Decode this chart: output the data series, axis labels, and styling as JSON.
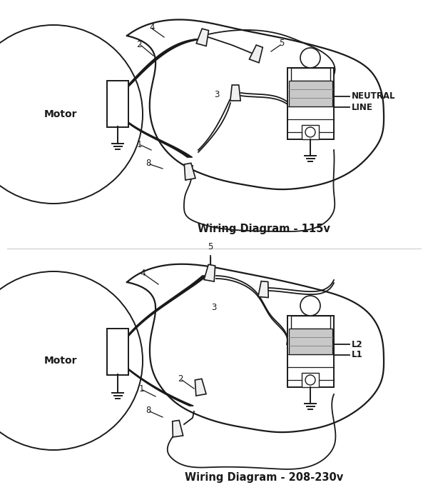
{
  "title1": "Wiring Diagram - 115v",
  "title2": "Wiring Diagram - 208-230v",
  "bg_color": "#ffffff",
  "line_color": "#1a1a1a",
  "text_color": "#1a1a1a",
  "label_fontsize": 8.5,
  "title_fontsize": 10.5,
  "neutral_label": "NEUTRAL",
  "line_label": "LINE",
  "l1_label": "L1",
  "l2_label": "L2",
  "motor_label": "Motor"
}
